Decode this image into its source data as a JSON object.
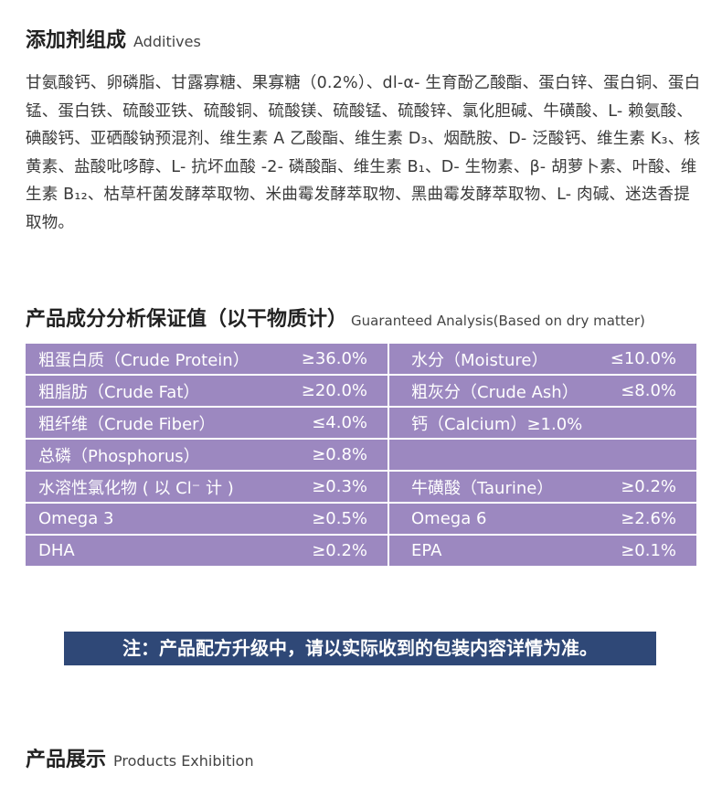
{
  "additives": {
    "title": "添加剂组成",
    "subtitle": "Additives",
    "text": "甘氨酸钙、卵磷脂、甘露寡糖、果寡糖（0.2%）、dl-α- 生育酚乙酸酯、蛋白锌、蛋白铜、蛋白锰、蛋白铁、硫酸亚铁、硫酸铜、硫酸镁、硫酸锰、硫酸锌、氯化胆碱、牛磺酸、L- 赖氨酸、碘酸钙、亚硒酸钠预混剂、维生素 A 乙酸酯、维生素 D₃、烟酰胺、D- 泛酸钙、维生素 K₃、核黄素、盐酸吡哆醇、L- 抗坏血酸 -2- 磷酸酯、维生素 B₁、D- 生物素、β- 胡萝卜素、叶酸、维生素 B₁₂、枯草杆菌发酵萃取物、米曲霉发酵萃取物、黑曲霉发酵萃取物、L- 肉碱、迷迭香提取物。"
  },
  "analysis": {
    "title": "产品成分分析保证值（以干物质计）",
    "subtitle": "Guaranteed Analysis(Based on dry matter)",
    "rows": [
      [
        "粗蛋白质（Crude Protein）",
        "≥36.0%",
        "水分（Moisture）",
        "≤10.0%"
      ],
      [
        "粗脂肪（Crude Fat）",
        "≥20.0%",
        "粗灰分（Crude Ash）",
        "≤8.0%"
      ],
      [
        "粗纤维（Crude Fiber）",
        "≤4.0%",
        "钙（Calcium）≥1.0%"
      ],
      [
        "总磷（Phosphorus）",
        "≥0.8%"
      ],
      [
        "水溶性氯化物 ( 以 Cl⁻ 计 )",
        "≥0.3%",
        "牛磺酸（Taurine）",
        "≥0.2%"
      ],
      [
        "Omega 3",
        "≥0.5%",
        "Omega 6",
        "≥2.6%"
      ],
      [
        "DHA",
        "≥0.2%",
        "EPA",
        "≥0.1%"
      ]
    ]
  },
  "note": "注：产品配方升级中，请以实际收到的包装内容详情为准。",
  "exhibition": {
    "title": "产品展示",
    "subtitle": "Products Exhibition"
  }
}
